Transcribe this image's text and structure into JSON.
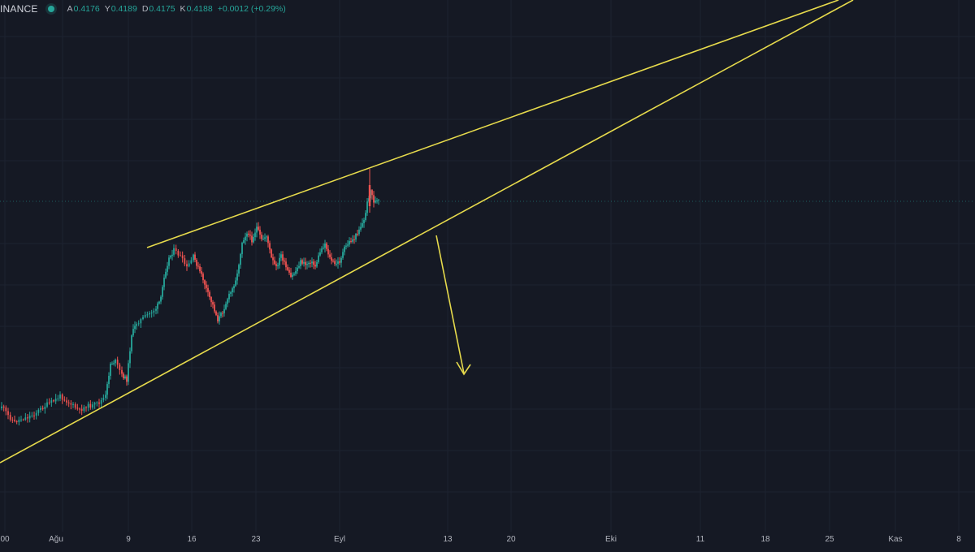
{
  "legend": {
    "source": "INANCE",
    "open_label": "A",
    "open": "0.4176",
    "high_label": "Y",
    "high": "0.4189",
    "low_label": "D",
    "low": "0.4175",
    "close_label": "K",
    "close": "0.4188",
    "change": "+0.0012 (+0.29%)"
  },
  "colors": {
    "background": "#151924",
    "up": "#26a69a",
    "down": "#ef5350",
    "drawing": "#e6da4c",
    "grid": "#1d2230",
    "current_price_line": "#26a69a"
  },
  "xaxis": {
    "labels": [
      "00",
      "Ağu",
      "9",
      "16",
      "23",
      "Eyl",
      "13",
      "20",
      "Eki",
      "11",
      "18",
      "25",
      "Kas",
      "8"
    ]
  },
  "chart_data": {
    "type": "candlestick",
    "interval": "4h",
    "last_close": 0.4188
  }
}
